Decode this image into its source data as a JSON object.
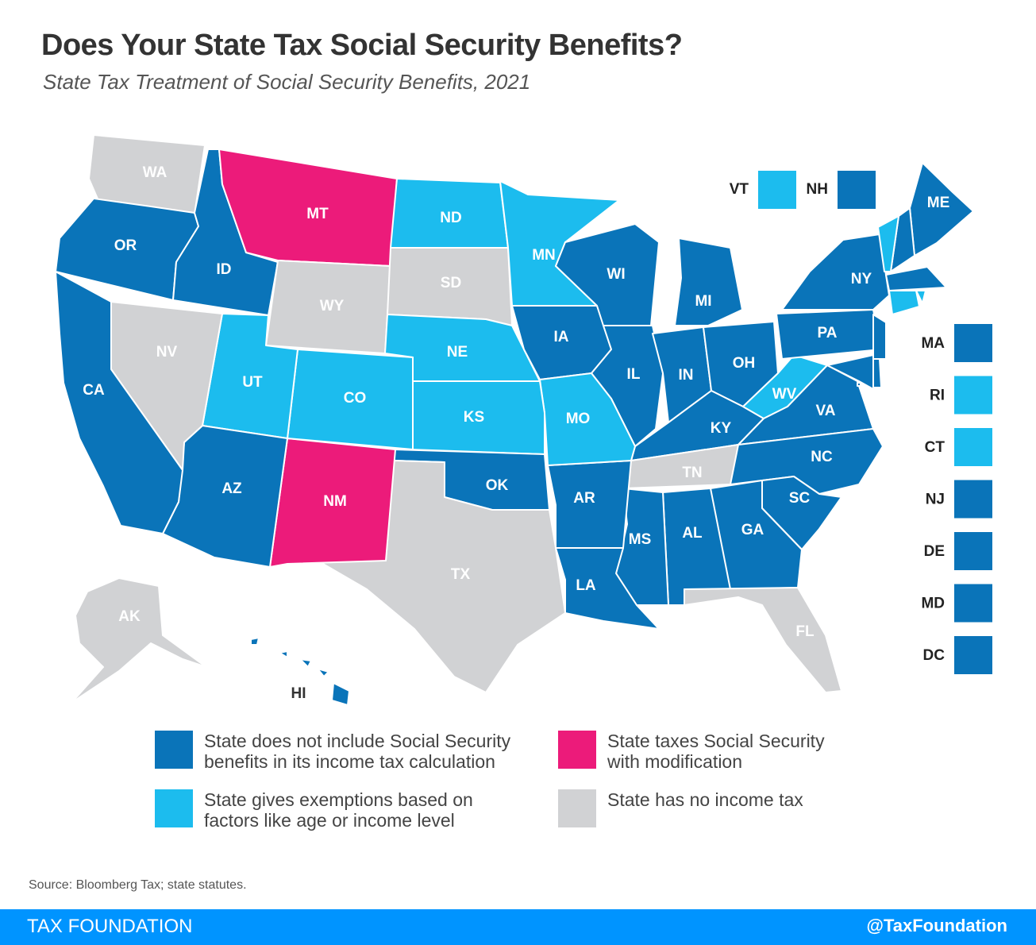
{
  "title": "Does Your State Tax Social Security Benefits?",
  "subtitle": "State Tax Treatment of Social Security Benefits, 2021",
  "colors": {
    "not_included": "#0a74b9",
    "exemptions": "#1cbcee",
    "taxes_with_modification": "#ec1b7a",
    "no_income_tax": "#d1d2d4",
    "footer": "#0094ff"
  },
  "states": {
    "WA": "no_income_tax",
    "OR": "not_included",
    "ID": "not_included",
    "MT": "taxes_with_modification",
    "WY": "no_income_tax",
    "ND": "exemptions",
    "SD": "no_income_tax",
    "MN": "exemptions",
    "NE": "exemptions",
    "IA": "not_included",
    "WI": "not_included",
    "MI": "not_included",
    "IL": "not_included",
    "IN": "not_included",
    "OH": "not_included",
    "KY": "not_included",
    "TN": "no_income_tax",
    "WV": "exemptions",
    "VA": "not_included",
    "PA": "not_included",
    "NY": "not_included",
    "NC": "not_included",
    "SC": "not_included",
    "GA": "not_included",
    "AL": "not_included",
    "MS": "not_included",
    "FL": "no_income_tax",
    "LA": "not_included",
    "AR": "not_included",
    "MO": "exemptions",
    "KS": "exemptions",
    "OK": "not_included",
    "TX": "no_income_tax",
    "NM": "taxes_with_modification",
    "CO": "exemptions",
    "UT": "exemptions",
    "AZ": "not_included",
    "NV": "no_income_tax",
    "CA": "not_included",
    "ME": "not_included",
    "NH": "not_included",
    "VT": "exemptions",
    "MA": "not_included",
    "CT": "exemptions",
    "RI": "exemptions",
    "NJ": "not_included",
    "DE": "not_included",
    "MD": "not_included",
    "DC": "not_included",
    "AK": "no_income_tax",
    "HI": "not_included"
  },
  "side_boxes": [
    "MA",
    "RI",
    "CT",
    "NJ",
    "DE",
    "MD",
    "DC"
  ],
  "top_boxes": [
    "VT",
    "NH"
  ],
  "legend": [
    {
      "category": "not_included",
      "text": "State does not include Social Security benefits in its income tax calculation"
    },
    {
      "category": "taxes_with_modification",
      "text": "State taxes Social Security with modification"
    },
    {
      "category": "exemptions",
      "text": "State gives exemptions based on factors like age or income level"
    },
    {
      "category": "no_income_tax",
      "text": "State has no income tax"
    }
  ],
  "source": "Source: Bloomberg Tax; state statutes.",
  "footer": {
    "brand": "TAX FOUNDATION",
    "handle": "@TaxFoundation"
  }
}
